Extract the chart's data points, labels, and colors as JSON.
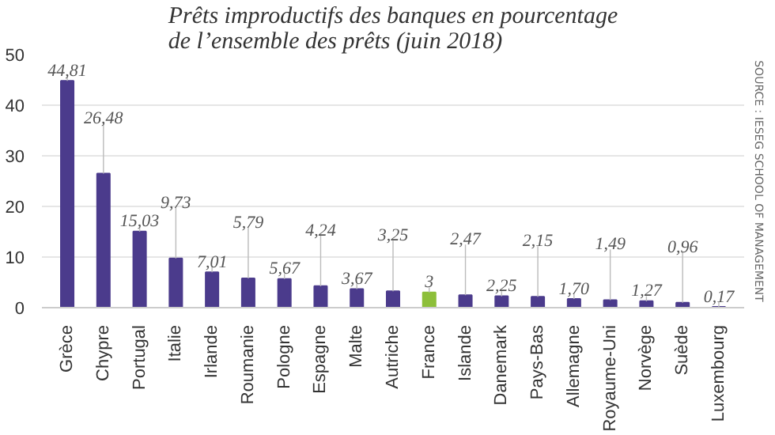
{
  "chart_data": {
    "type": "bar",
    "title": "Prêts improductifs des banques en pourcentage\nde l’ensemble des prêts (juin 2018)",
    "categories": [
      "Grèce",
      "Chypre",
      "Portugal",
      "Italie",
      "Irlande",
      "Roumanie",
      "Pologne",
      "Espagne",
      "Malte",
      "Autriche",
      "France",
      "Islande",
      "Danemark",
      "Pays-Bas",
      "Allemagne",
      "Royaume-Uni",
      "Norvège",
      "Suède",
      "Luxembourg"
    ],
    "values": [
      44.81,
      26.48,
      15.03,
      9.73,
      7.01,
      5.79,
      5.67,
      4.24,
      3.67,
      3.25,
      3,
      2.47,
      2.25,
      2.15,
      1.7,
      1.49,
      1.27,
      0.96,
      0.17
    ],
    "value_labels": [
      "44,81",
      "26,48",
      "15,03",
      "9,73",
      "7,01",
      "5,79",
      "5,67",
      "4,24",
      "3,67",
      "3,25",
      "3",
      "2,47",
      "2,25",
      "2,15",
      "1,70",
      "1,49",
      "1,27",
      "0,96",
      "0,17"
    ],
    "colors": [
      "#4b3b8c",
      "#4b3b8c",
      "#4b3b8c",
      "#4b3b8c",
      "#4b3b8c",
      "#4b3b8c",
      "#4b3b8c",
      "#4b3b8c",
      "#4b3b8c",
      "#4b3b8c",
      "#8dbf3a",
      "#4b3b8c",
      "#4b3b8c",
      "#4b3b8c",
      "#4b3b8c",
      "#4b3b8c",
      "#4b3b8c",
      "#4b3b8c",
      "#4b3b8c"
    ],
    "ylim": [
      0,
      50
    ],
    "yticks": [
      0,
      10,
      20,
      30,
      40,
      50
    ],
    "grid": "y",
    "annotations": [
      "SOURCE : IESEG SCHOOL OF MANAGEMENT"
    ]
  }
}
